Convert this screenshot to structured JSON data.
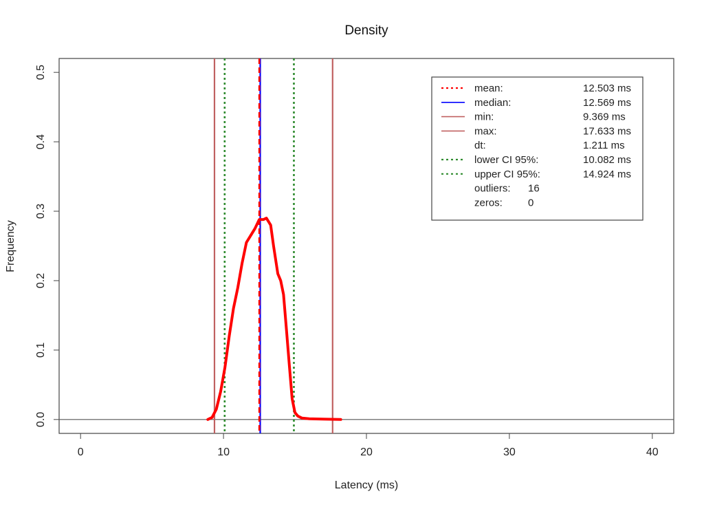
{
  "chart_data": {
    "type": "line",
    "title": "Density",
    "xlabel": "Latency (ms)",
    "ylabel": "Frequency",
    "xlim": [
      -1.5,
      41.5
    ],
    "ylim": [
      -0.02,
      0.52
    ],
    "x_ticks": [
      {
        "value": 0,
        "label": "0"
      },
      {
        "value": 10,
        "label": "10"
      },
      {
        "value": 20,
        "label": "20"
      },
      {
        "value": 30,
        "label": "30"
      },
      {
        "value": 40,
        "label": "40"
      }
    ],
    "y_ticks": [
      {
        "value": 0.0,
        "label": "0.0"
      },
      {
        "value": 0.1,
        "label": "0.1"
      },
      {
        "value": 0.2,
        "label": "0.2"
      },
      {
        "value": 0.3,
        "label": "0.3"
      },
      {
        "value": 0.4,
        "label": "0.4"
      },
      {
        "value": 0.5,
        "label": "0.5"
      }
    ],
    "grid": false,
    "legend_position": "top-right",
    "series": [
      {
        "color": "#ff0000",
        "x": [
          8.9,
          9.2,
          9.5,
          9.8,
          10.1,
          10.4,
          10.7,
          11.0,
          11.3,
          11.6,
          11.9,
          12.2,
          12.5,
          12.8,
          13.0,
          13.3,
          13.5,
          13.8,
          14.0,
          14.2,
          14.4,
          14.6,
          14.8,
          15.0,
          15.2,
          15.5,
          16.0,
          17.0,
          18.2
        ],
        "y": [
          0.0,
          0.003,
          0.015,
          0.04,
          0.075,
          0.12,
          0.16,
          0.19,
          0.225,
          0.255,
          0.265,
          0.275,
          0.288,
          0.288,
          0.29,
          0.28,
          0.25,
          0.21,
          0.2,
          0.18,
          0.13,
          0.08,
          0.03,
          0.01,
          0.005,
          0.002,
          0.001,
          0.0005,
          0.0
        ]
      }
    ],
    "reference_lines": [
      {
        "name": "min",
        "x": 9.369,
        "color": "#c06060",
        "style": "solid"
      },
      {
        "name": "lower CI 95%",
        "x": 10.082,
        "color": "#2e8b2e",
        "style": "dotted"
      },
      {
        "name": "median",
        "x": 12.569,
        "color": "#0000ff",
        "style": "solid"
      },
      {
        "name": "mean",
        "x": 12.503,
        "color": "#ff0000",
        "style": "dashed"
      },
      {
        "name": "upper CI 95%",
        "x": 14.924,
        "color": "#2e8b2e",
        "style": "dotted"
      },
      {
        "name": "max",
        "x": 17.633,
        "color": "#c06060",
        "style": "solid"
      }
    ],
    "baseline": {
      "y": 0.0,
      "color": "#555555"
    },
    "legend": [
      {
        "label": "mean:",
        "value": "12.503 ms",
        "color": "#ff0000",
        "style": "dotted"
      },
      {
        "label": "median:",
        "value": "12.569 ms",
        "color": "#0000ff",
        "style": "solid"
      },
      {
        "label": "min:",
        "value": "9.369 ms",
        "color": "#c06060",
        "style": "solid"
      },
      {
        "label": "max:",
        "value": "17.633 ms",
        "color": "#c06060",
        "style": "solid"
      },
      {
        "label": "dt:",
        "value": "1.211 ms",
        "color": "",
        "style": "none"
      },
      {
        "label": "lower CI 95%:",
        "value": "10.082 ms",
        "color": "#2e8b2e",
        "style": "dotted"
      },
      {
        "label": "upper CI 95%:",
        "value": "14.924 ms",
        "color": "#2e8b2e",
        "style": "dotted"
      },
      {
        "label": "outliers:",
        "value": "16",
        "color": "",
        "style": "none"
      },
      {
        "label": "zeros:",
        "value": "0",
        "color": "",
        "style": "none"
      }
    ]
  }
}
